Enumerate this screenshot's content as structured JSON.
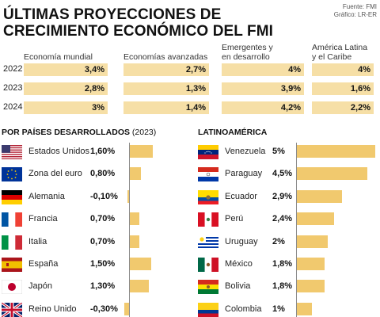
{
  "header": {
    "title_line1": "ÚLTIMAS PROYECCIONES DE",
    "title_line2": "CRECIMIENTO ECONÓMICO DEL FMI",
    "source": "Fuente: FMI",
    "graphic": "Gráfico: LR-ER"
  },
  "colors": {
    "bar": "#f1c96e",
    "projection_box": "#f6dfa6",
    "axis": "#8a8a8a"
  },
  "chart_data": [
    {
      "type": "table",
      "title": "ÚLTIMAS PROYECCIONES DE CRECIMIENTO ECONÓMICO DEL FMI",
      "years": [
        "2022",
        "2023",
        "2024"
      ],
      "columns": [
        {
          "name": "Economía mundial",
          "values": [
            "3,4%",
            "2,8%",
            "3%"
          ]
        },
        {
          "name": "Economías avanzadas",
          "values": [
            "2,7%",
            "1,3%",
            "1,4%"
          ]
        },
        {
          "name_line1": "Emergentes y",
          "name_line2": "en desarrollo",
          "values": [
            "4%",
            "3,9%",
            "4,2%"
          ]
        },
        {
          "name_line1": "América Latina",
          "name_line2": "y el Caribe",
          "values": [
            "4%",
            "1,6%",
            "2,2%"
          ]
        }
      ]
    },
    {
      "type": "bar",
      "title": "POR PAÍSES DESARROLLADOS",
      "subtitle": "(2023)",
      "categories": [
        "Estados Unidos",
        "Zona del euro",
        "Alemania",
        "Francia",
        "Italia",
        "España",
        "Japón",
        "Reino Unido"
      ],
      "values": [
        1.6,
        0.8,
        -0.1,
        0.7,
        0.7,
        1.5,
        1.3,
        -0.3
      ],
      "labels": [
        "1,60%",
        "0,80%",
        "-0,10%",
        "0,70%",
        "0,70%",
        "1,50%",
        "1,30%",
        "-0,30%"
      ],
      "flags": [
        "us-flag-icon",
        "eu-flag-icon",
        "germany-flag-icon",
        "france-flag-icon",
        "italy-flag-icon",
        "spain-flag-icon",
        "japan-flag-icon",
        "uk-flag-icon"
      ],
      "xlim": [
        -0.3,
        2.0
      ]
    },
    {
      "type": "bar",
      "title": "LATINOAMÉRICA",
      "categories": [
        "Venezuela",
        "Paraguay",
        "Ecuador",
        "Perú",
        "Uruguay",
        "México",
        "Bolivia",
        "Colombia"
      ],
      "values": [
        5,
        4.5,
        2.9,
        2.4,
        2,
        1.8,
        1.8,
        1
      ],
      "labels": [
        "5%",
        "4,5%",
        "2,9%",
        "2,4%",
        "2%",
        "1,8%",
        "1,8%",
        "1%"
      ],
      "flags": [
        "venezuela-flag-icon",
        "paraguay-flag-icon",
        "ecuador-flag-icon",
        "peru-flag-icon",
        "uruguay-flag-icon",
        "mexico-flag-icon",
        "bolivia-flag-icon",
        "colombia-flag-icon"
      ],
      "xlim": [
        0,
        5
      ]
    }
  ]
}
